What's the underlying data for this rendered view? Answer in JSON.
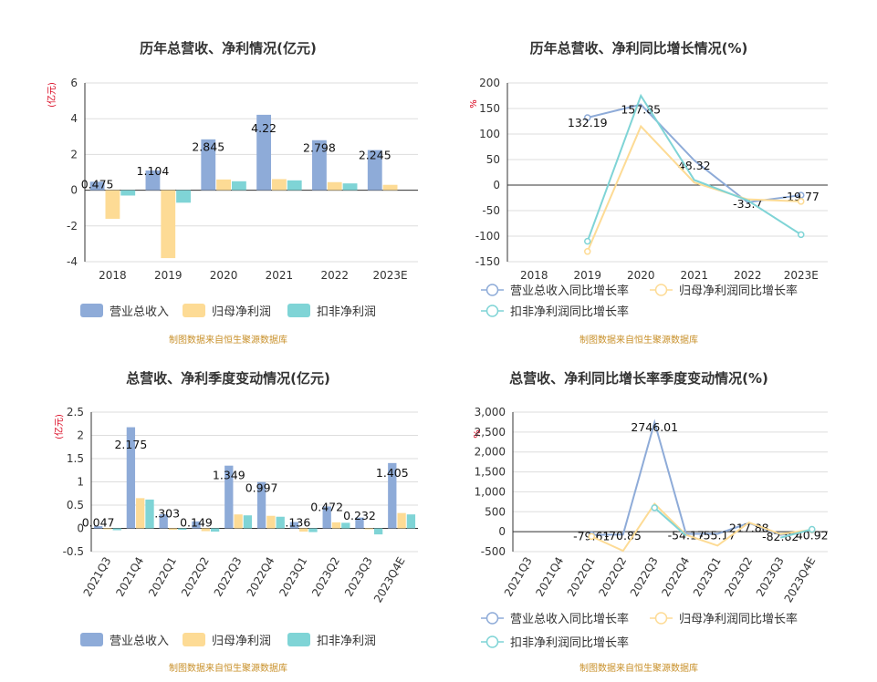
{
  "colors": {
    "revenue": "#8eabd8",
    "net_profit": "#fddb95",
    "deducted_profit": "#7fd4d6",
    "grid": "#dddddd",
    "axis": "#333333"
  },
  "source_note": "制图数据来自恒生聚源数据库",
  "chart_data": [
    {
      "type": "bar",
      "title": "历年总营收、净利情况(亿元)",
      "unit_label": "(亿元)",
      "categories": [
        "2018",
        "2019",
        "2020",
        "2021",
        "2022",
        "2023E"
      ],
      "ylim": [
        -4,
        6
      ],
      "yticks": [
        -4,
        -2,
        0,
        2,
        4,
        6
      ],
      "ytick_labels": [
        "-4",
        "-2",
        "0",
        "2",
        "4",
        "6"
      ],
      "series": [
        {
          "name": "营业总收入",
          "values": [
            0.475,
            1.104,
            2.845,
            4.22,
            2.798,
            2.245
          ],
          "labels": [
            "0.475",
            "1.104",
            "2.845",
            "4.22",
            "2.798",
            "2.245"
          ]
        },
        {
          "name": "归母净利润",
          "values": [
            -1.6,
            -3.8,
            0.6,
            0.62,
            0.45,
            0.3
          ]
        },
        {
          "name": "扣非净利润",
          "values": [
            -0.3,
            -0.7,
            0.5,
            0.55,
            0.38,
            null
          ]
        }
      ],
      "legend": "bottom",
      "grid": true
    },
    {
      "type": "line",
      "title": "历年总营收、净利同比增长情况(%)",
      "unit_label": "%",
      "categories": [
        "2018",
        "2019",
        "2020",
        "2021",
        "2022",
        "2023E"
      ],
      "ylim": [
        -150,
        200
      ],
      "yticks": [
        -150,
        -100,
        -50,
        0,
        50,
        100,
        150,
        200
      ],
      "ytick_labels": [
        "-150",
        "-100",
        "-50",
        "0",
        "50",
        "100",
        "150",
        "200"
      ],
      "series": [
        {
          "name": "营业总收入同比增长率",
          "values": [
            null,
            132.19,
            157.85,
            48.32,
            -33.7,
            -19.77
          ],
          "labels": [
            null,
            "132.19",
            "157.85",
            "48.32",
            "-33.7",
            "-19.77"
          ]
        },
        {
          "name": "归母净利润同比增长率",
          "values": [
            null,
            -130,
            115,
            5,
            -28,
            -32
          ]
        },
        {
          "name": "扣非净利润同比增长率",
          "values": [
            null,
            -110,
            175,
            10,
            -30,
            -97
          ]
        }
      ],
      "legend": "bottom",
      "grid": true
    },
    {
      "type": "bar",
      "title": "总营收、净利季度变动情况(亿元)",
      "unit_label": "(亿元)",
      "categories": [
        "2021Q3",
        "2021Q4",
        "2022Q1",
        "2022Q2",
        "2022Q3",
        "2022Q4",
        "2023Q1",
        "2023Q2",
        "2023Q3",
        "2023Q4E"
      ],
      "ylim": [
        -0.5,
        2.5
      ],
      "yticks": [
        -0.5,
        0,
        0.5,
        1,
        1.5,
        2,
        2.5
      ],
      "ytick_labels": [
        "-0.5",
        "0",
        "0.5",
        "1",
        "1.5",
        "2",
        "2.5"
      ],
      "series": [
        {
          "name": "营业总收入",
          "values": [
            0.047,
            2.175,
            0.303,
            0.149,
            1.349,
            0.997,
            0.136,
            0.472,
            0.232,
            1.405
          ],
          "labels": [
            "0.047",
            "2.175",
            "0.303",
            "0.149",
            "1.349",
            "0.997",
            "0.136",
            "0.472",
            "0.232",
            "1.405"
          ]
        },
        {
          "name": "归母净利润",
          "values": [
            -0.02,
            0.65,
            -0.03,
            -0.06,
            0.3,
            0.27,
            -0.07,
            0.13,
            -0.02,
            0.33
          ]
        },
        {
          "name": "扣非净利润",
          "values": [
            -0.04,
            0.62,
            -0.03,
            -0.07,
            0.28,
            0.25,
            -0.08,
            0.12,
            -0.13,
            0.3
          ]
        }
      ],
      "legend": "bottom",
      "grid": true
    },
    {
      "type": "line",
      "title": "总营收、净利同比增长率季度变动情况(%)",
      "unit_label": "%",
      "categories": [
        "2021Q3",
        "2021Q4",
        "2022Q1",
        "2022Q2",
        "2022Q3",
        "2022Q4",
        "2023Q1",
        "2023Q2",
        "2023Q3",
        "2023Q4E"
      ],
      "ylim": [
        -500,
        3000
      ],
      "yticks": [
        -500,
        0,
        500,
        1000,
        1500,
        2000,
        2500,
        3000
      ],
      "ytick_labels": [
        "-500",
        "0",
        "500",
        "1,000",
        "1,500",
        "2,000",
        "2,500",
        "3,000"
      ],
      "series": [
        {
          "name": "营业总收入同比增长率",
          "values": [
            null,
            null,
            -79.61,
            -70.85,
            2746.01,
            -54.17,
            -55.17,
            217.88,
            -82.82,
            40.92
          ],
          "labels": [
            null,
            null,
            "-79.61",
            "-70.85",
            "2746.01",
            "-54.17",
            "-55.17",
            "217.88",
            "-82.82",
            "40.92"
          ]
        },
        {
          "name": "归母净利润同比增长率",
          "values": [
            null,
            null,
            -120,
            -480,
            700,
            -80,
            -350,
            230,
            -60,
            50
          ]
        },
        {
          "name": "扣非净利润同比增长率",
          "values": [
            null,
            null,
            null,
            null,
            600,
            -100,
            null,
            null,
            -150,
            60
          ]
        }
      ],
      "legend": "bottom",
      "grid": true
    }
  ]
}
